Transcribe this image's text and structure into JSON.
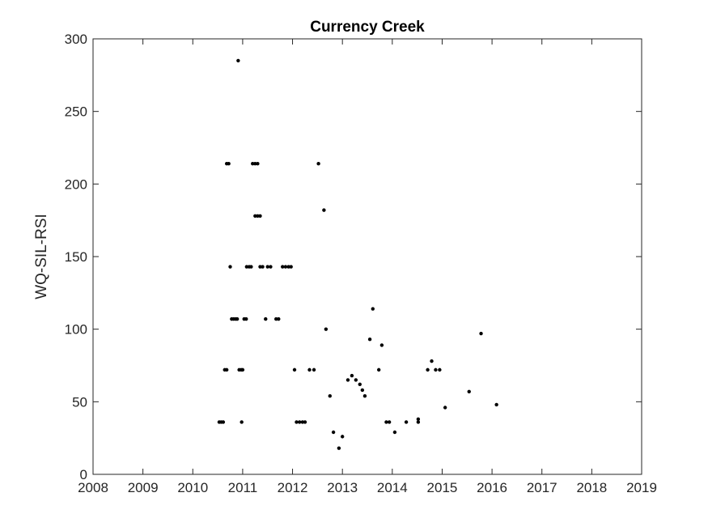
{
  "chart_data": {
    "type": "scatter",
    "title": "Currency Creek",
    "xlabel": "",
    "ylabel": "WQ-SIL-RSI",
    "xlim": [
      2008,
      2019
    ],
    "ylim": [
      0,
      300
    ],
    "xticks": [
      2008,
      2009,
      2010,
      2011,
      2012,
      2013,
      2014,
      2015,
      2016,
      2017,
      2018,
      2019
    ],
    "yticks": [
      0,
      50,
      100,
      150,
      200,
      250,
      300
    ],
    "grid": false,
    "marker_color": "#000000",
    "series": [
      {
        "points": [
          [
            2010.53,
            36
          ],
          [
            2010.57,
            36
          ],
          [
            2010.61,
            36
          ],
          [
            2010.64,
            72
          ],
          [
            2010.68,
            72
          ],
          [
            2010.68,
            214
          ],
          [
            2010.72,
            214
          ],
          [
            2010.75,
            143
          ],
          [
            2010.78,
            107
          ],
          [
            2010.82,
            107
          ],
          [
            2010.86,
            107
          ],
          [
            2010.89,
            107
          ],
          [
            2010.91,
            285
          ],
          [
            2010.93,
            72
          ],
          [
            2010.97,
            72
          ],
          [
            2011.0,
            72
          ],
          [
            2010.98,
            36
          ],
          [
            2011.03,
            107
          ],
          [
            2011.07,
            107
          ],
          [
            2011.08,
            143
          ],
          [
            2011.13,
            143
          ],
          [
            2011.17,
            143
          ],
          [
            2011.2,
            214
          ],
          [
            2011.25,
            214
          ],
          [
            2011.3,
            214
          ],
          [
            2011.25,
            178
          ],
          [
            2011.3,
            178
          ],
          [
            2011.35,
            178
          ],
          [
            2011.35,
            143
          ],
          [
            2011.4,
            143
          ],
          [
            2011.46,
            107
          ],
          [
            2011.5,
            143
          ],
          [
            2011.56,
            143
          ],
          [
            2011.67,
            107
          ],
          [
            2011.72,
            107
          ],
          [
            2011.8,
            143
          ],
          [
            2011.86,
            143
          ],
          [
            2011.92,
            143
          ],
          [
            2011.97,
            143
          ],
          [
            2012.04,
            72
          ],
          [
            2012.08,
            36
          ],
          [
            2012.14,
            36
          ],
          [
            2012.2,
            36
          ],
          [
            2012.25,
            36
          ],
          [
            2012.34,
            72
          ],
          [
            2012.43,
            72
          ],
          [
            2012.52,
            214
          ],
          [
            2012.63,
            182
          ],
          [
            2012.67,
            100
          ],
          [
            2012.75,
            54
          ],
          [
            2012.82,
            29
          ],
          [
            2012.93,
            18
          ],
          [
            2013.0,
            26
          ],
          [
            2013.11,
            65
          ],
          [
            2013.19,
            68
          ],
          [
            2013.27,
            65
          ],
          [
            2013.35,
            62
          ],
          [
            2013.4,
            58
          ],
          [
            2013.45,
            54
          ],
          [
            2013.55,
            93
          ],
          [
            2013.61,
            114
          ],
          [
            2013.73,
            72
          ],
          [
            2013.79,
            89
          ],
          [
            2013.88,
            36
          ],
          [
            2013.94,
            36
          ],
          [
            2014.05,
            29
          ],
          [
            2014.28,
            36
          ],
          [
            2014.52,
            36
          ],
          [
            2014.52,
            38
          ],
          [
            2014.71,
            72
          ],
          [
            2014.79,
            78
          ],
          [
            2014.87,
            72
          ],
          [
            2014.95,
            72
          ],
          [
            2015.06,
            46
          ],
          [
            2015.54,
            57
          ],
          [
            2015.78,
            97
          ],
          [
            2016.09,
            48
          ]
        ]
      }
    ]
  }
}
